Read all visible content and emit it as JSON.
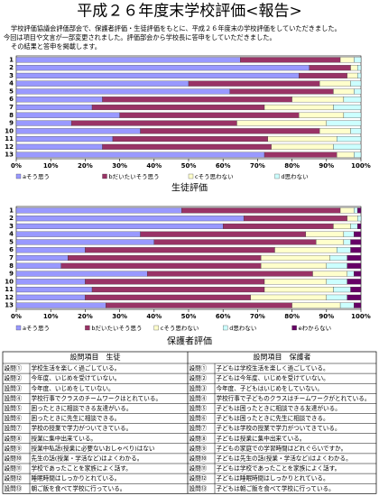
{
  "header": {
    "title": "平成２６年度末学校評価<報告>",
    "lines": [
      "学校評価協議会評価部会で、保護者評価・生徒評価をもとに、平成２６年度末の学校評価をしていただきました。",
      "今回は項目や文言が一部変更されました。評価部会から学校長に答申をしていただきました。",
      "その結果と答申を掲載します。"
    ]
  },
  "chart_data": [
    {
      "type": "stacked_barh",
      "caption": "生徒評価",
      "categories": [
        "1",
        "2",
        "3",
        "4",
        "5",
        "6",
        "7",
        "8",
        "9",
        "10",
        "11",
        "12",
        "13"
      ],
      "series": [
        {
          "name": "aそう思う",
          "color": "#9999ff",
          "values": [
            65,
            85,
            82,
            50,
            62,
            25,
            22,
            30,
            16,
            36,
            28,
            25,
            72
          ]
        },
        {
          "name": "bだいたいそう思う",
          "color": "#993366",
          "values": [
            29,
            12,
            14,
            38,
            30,
            55,
            50,
            52,
            48,
            52,
            45,
            49,
            21
          ]
        },
        {
          "name": "cそう思わない",
          "color": "#ffffcc",
          "values": [
            4,
            2,
            3,
            9,
            6,
            15,
            20,
            13,
            26,
            9,
            20,
            18,
            5
          ]
        },
        {
          "name": "d思わない",
          "color": "#ccffff",
          "values": [
            2,
            1,
            1,
            3,
            2,
            5,
            8,
            5,
            10,
            3,
            7,
            8,
            2
          ]
        }
      ],
      "xlim": [
        0,
        100
      ],
      "xticks": [
        {
          "value": 0,
          "label": "0%"
        },
        {
          "value": 10,
          "label": "10%"
        },
        {
          "value": 20,
          "label": "20%"
        },
        {
          "value": 30,
          "label": "30%"
        },
        {
          "value": 40,
          "label": "40%"
        },
        {
          "value": 50,
          "label": "50%"
        },
        {
          "value": 60,
          "label": "60%"
        },
        {
          "value": 70,
          "label": "70%"
        },
        {
          "value": 80,
          "label": "80%"
        },
        {
          "value": 90,
          "label": "90%"
        },
        {
          "value": 100,
          "label": "100%"
        }
      ]
    },
    {
      "type": "stacked_barh",
      "caption": "保護者評価",
      "categories": [
        "1",
        "2",
        "3",
        "4",
        "5",
        "6",
        "7",
        "8",
        "9",
        "10",
        "11",
        "12",
        "13"
      ],
      "series": [
        {
          "name": "aそう思う",
          "color": "#9999ff",
          "values": [
            48,
            66,
            60,
            36,
            40,
            20,
            15,
            13,
            38,
            20,
            22,
            20,
            26
          ]
        },
        {
          "name": "bだいたいそう思う",
          "color": "#993366",
          "values": [
            46,
            30,
            32,
            48,
            47,
            55,
            56,
            58,
            48,
            52,
            50,
            48,
            54
          ]
        },
        {
          "name": "cそう思わない",
          "color": "#ffffcc",
          "values": [
            4,
            3,
            5,
            11,
            8,
            18,
            20,
            19,
            10,
            18,
            20,
            22,
            14
          ]
        },
        {
          "name": "d思わない",
          "color": "#ccffff",
          "values": [
            1,
            1,
            2,
            3,
            2,
            4,
            5,
            6,
            2,
            6,
            5,
            6,
            4
          ]
        },
        {
          "name": "eわからない",
          "color": "#660066",
          "values": [
            1,
            0,
            1,
            2,
            3,
            3,
            4,
            4,
            2,
            4,
            3,
            4,
            2
          ]
        }
      ],
      "xlim": [
        0,
        100
      ],
      "xticks": [
        {
          "value": 0,
          "label": "0%"
        },
        {
          "value": 10,
          "label": "10%"
        },
        {
          "value": 20,
          "label": "20%"
        },
        {
          "value": 30,
          "label": "30%"
        },
        {
          "value": 40,
          "label": "40%"
        },
        {
          "value": 50,
          "label": "50%"
        },
        {
          "value": 60,
          "label": "60%"
        },
        {
          "value": 70,
          "label": "70%"
        },
        {
          "value": 80,
          "label": "80%"
        },
        {
          "value": 90,
          "label": "90%"
        },
        {
          "value": 100,
          "label": "100%"
        }
      ]
    }
  ],
  "table": {
    "header": [
      "設問項目　生徒",
      "設問項目　保護者"
    ],
    "rows": [
      [
        "設問①",
        "学校生活を楽しく過ごしている。",
        "設問①",
        "子どもは学校生活を楽しく過ごしている。"
      ],
      [
        "設問②",
        "今年度、いじめを受けていない。",
        "設問②",
        "子どもは今年度、いじめを受けていない。"
      ],
      [
        "設問③",
        "今年度、いじめをしていない。",
        "設問③",
        "今年度、子どもはいじめをしていない。"
      ],
      [
        "設問④",
        "学校行事でクラスのチームワークはとれている。",
        "設問④",
        "学校行事で子どものクラスはチームワークがとれている。"
      ],
      [
        "設問⑤",
        "困ったときに相談できる友達がいる。",
        "設問⑤",
        "子どもは困ったときに相談できる友達がいる。"
      ],
      [
        "設問⑥",
        "困ったときに先生に相談できる。",
        "設問⑥",
        "子どもは困ったときに先生に相談できる。"
      ],
      [
        "設問⑦",
        "学校の授業で学力がついてきている。",
        "設問⑦",
        "子どもは学校の授業で学力がついてきている。"
      ],
      [
        "設問⑧",
        "授業に集中出来ている。",
        "設問⑧",
        "子どもは授業に集中出来ている。"
      ],
      [
        "設問⑨",
        "授業中私語(授業に必要ないおしゃべり)はない",
        "設問⑨",
        "子どもの家庭での学習時間はどれぐらいですか。"
      ],
      [
        "設問⑩",
        "先生の話(授業・学活など)はよくわかる。",
        "設問⑩",
        "子どもは先生の話(授業・学活など)はよくわかる。"
      ],
      [
        "設問⑪",
        "学校であったことを家族によく話す。",
        "設問⑪",
        "子どもは学校であったことを家族によく話す。"
      ],
      [
        "設問⑫",
        "睡眠時間はしっかりとれている。",
        "設問⑫",
        "子どもは睡眠時間はしっかりとれている。"
      ],
      [
        "設問⑬",
        "朝ご飯を食べて学校に行っている。",
        "設問⑬",
        "子どもは朝ご飯を食べて学校に行っている。"
      ]
    ]
  }
}
